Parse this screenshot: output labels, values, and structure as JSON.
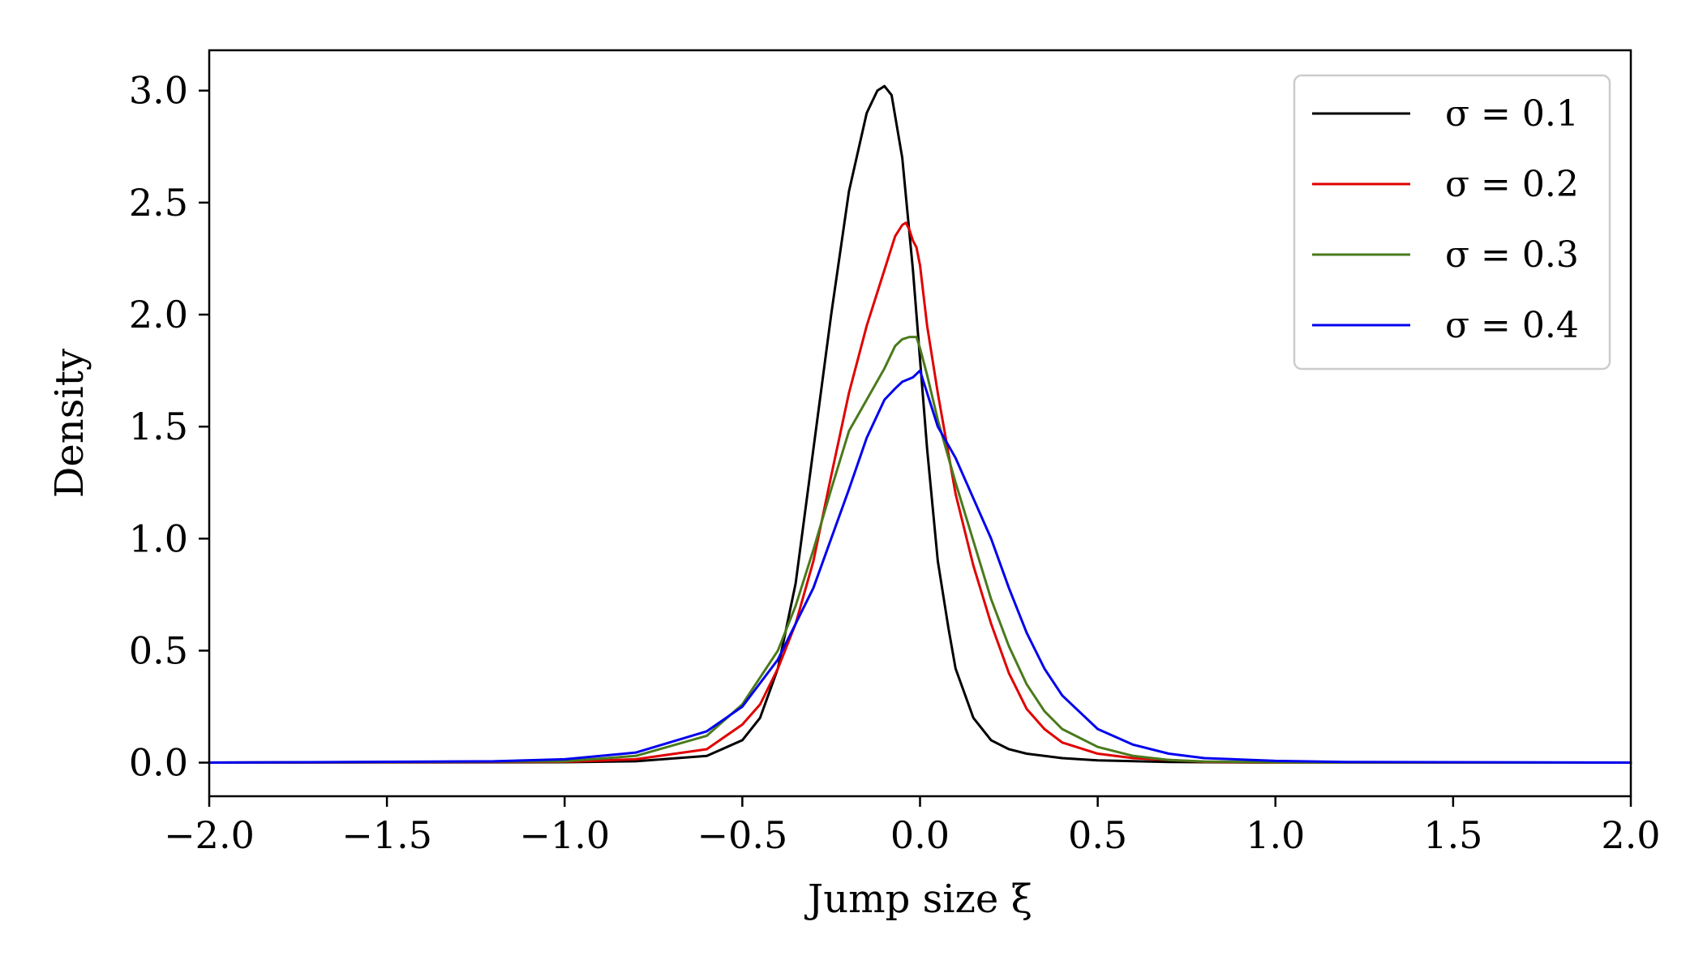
{
  "chart_data": {
    "type": "line",
    "title": "",
    "xlabel": "Jump size ξ",
    "ylabel": "Density",
    "xlim": [
      -2.0,
      2.0
    ],
    "ylim": [
      -0.15,
      3.18
    ],
    "x_ticks": [
      -2.0,
      -1.5,
      -1.0,
      -0.5,
      0.0,
      0.5,
      1.0,
      1.5,
      2.0
    ],
    "x_tick_labels": [
      "−2.0",
      "−1.5",
      "−1.0",
      "−0.5",
      "0.0",
      "0.5",
      "1.0",
      "1.5",
      "2.0"
    ],
    "y_ticks": [
      0.0,
      0.5,
      1.0,
      1.5,
      2.0,
      2.5,
      3.0
    ],
    "y_tick_labels": [
      "0.0",
      "0.5",
      "1.0",
      "1.5",
      "2.0",
      "2.5",
      "3.0"
    ],
    "grid": false,
    "legend_position": "top-right",
    "series": [
      {
        "name": "σ = 0.1",
        "color": "#000000",
        "x": [
          -2.0,
          -1.0,
          -0.8,
          -0.6,
          -0.5,
          -0.45,
          -0.4,
          -0.35,
          -0.3,
          -0.25,
          -0.2,
          -0.15,
          -0.12,
          -0.1,
          -0.08,
          -0.05,
          -0.02,
          0.0,
          0.02,
          0.05,
          0.08,
          0.1,
          0.15,
          0.2,
          0.25,
          0.3,
          0.4,
          0.5,
          0.7,
          1.0,
          2.0
        ],
        "y": [
          0.0,
          0.002,
          0.006,
          0.03,
          0.1,
          0.2,
          0.42,
          0.8,
          1.4,
          2.0,
          2.55,
          2.9,
          3.0,
          3.02,
          2.98,
          2.7,
          2.2,
          1.8,
          1.4,
          0.9,
          0.6,
          0.42,
          0.2,
          0.1,
          0.06,
          0.04,
          0.02,
          0.01,
          0.003,
          0.0,
          0.0
        ]
      },
      {
        "name": "σ = 0.2",
        "color": "#e00000",
        "x": [
          -2.0,
          -1.0,
          -0.8,
          -0.6,
          -0.5,
          -0.45,
          -0.4,
          -0.35,
          -0.3,
          -0.25,
          -0.2,
          -0.15,
          -0.1,
          -0.07,
          -0.05,
          -0.04,
          -0.03,
          -0.02,
          -0.01,
          0.0,
          0.02,
          0.05,
          0.1,
          0.15,
          0.2,
          0.25,
          0.3,
          0.35,
          0.4,
          0.5,
          0.6,
          0.8,
          1.0,
          2.0
        ],
        "y": [
          0.0,
          0.004,
          0.015,
          0.06,
          0.17,
          0.26,
          0.42,
          0.62,
          0.9,
          1.28,
          1.65,
          1.95,
          2.2,
          2.35,
          2.4,
          2.41,
          2.38,
          2.33,
          2.3,
          2.22,
          1.95,
          1.65,
          1.2,
          0.88,
          0.62,
          0.4,
          0.24,
          0.15,
          0.09,
          0.04,
          0.02,
          0.004,
          0.0,
          0.0
        ]
      },
      {
        "name": "σ = 0.3",
        "color": "#4a7a1c",
        "x": [
          -2.0,
          -1.0,
          -0.8,
          -0.6,
          -0.5,
          -0.4,
          -0.35,
          -0.3,
          -0.25,
          -0.2,
          -0.15,
          -0.1,
          -0.07,
          -0.05,
          -0.03,
          -0.01,
          0.0,
          0.02,
          0.05,
          0.1,
          0.15,
          0.2,
          0.25,
          0.3,
          0.35,
          0.4,
          0.5,
          0.6,
          0.7,
          0.8,
          1.0,
          2.0
        ],
        "y": [
          0.0,
          0.006,
          0.03,
          0.12,
          0.26,
          0.5,
          0.7,
          0.95,
          1.22,
          1.48,
          1.62,
          1.76,
          1.86,
          1.89,
          1.9,
          1.9,
          1.85,
          1.73,
          1.53,
          1.25,
          0.99,
          0.73,
          0.52,
          0.35,
          0.23,
          0.15,
          0.07,
          0.03,
          0.012,
          0.005,
          0.001,
          0.0
        ]
      },
      {
        "name": "σ = 0.4",
        "color": "#0000ee",
        "x": [
          -2.0,
          -1.2,
          -1.0,
          -0.8,
          -0.6,
          -0.5,
          -0.4,
          -0.3,
          -0.25,
          -0.2,
          -0.15,
          -0.1,
          -0.07,
          -0.05,
          -0.02,
          0.0,
          0.02,
          0.05,
          0.1,
          0.15,
          0.2,
          0.25,
          0.3,
          0.35,
          0.4,
          0.5,
          0.6,
          0.7,
          0.8,
          1.0,
          1.2,
          2.0
        ],
        "y": [
          0.0,
          0.006,
          0.015,
          0.045,
          0.14,
          0.25,
          0.46,
          0.78,
          1.0,
          1.22,
          1.45,
          1.62,
          1.67,
          1.7,
          1.72,
          1.75,
          1.65,
          1.5,
          1.36,
          1.18,
          1.0,
          0.78,
          0.58,
          0.42,
          0.3,
          0.15,
          0.08,
          0.04,
          0.02,
          0.008,
          0.003,
          0.0
        ]
      }
    ]
  }
}
